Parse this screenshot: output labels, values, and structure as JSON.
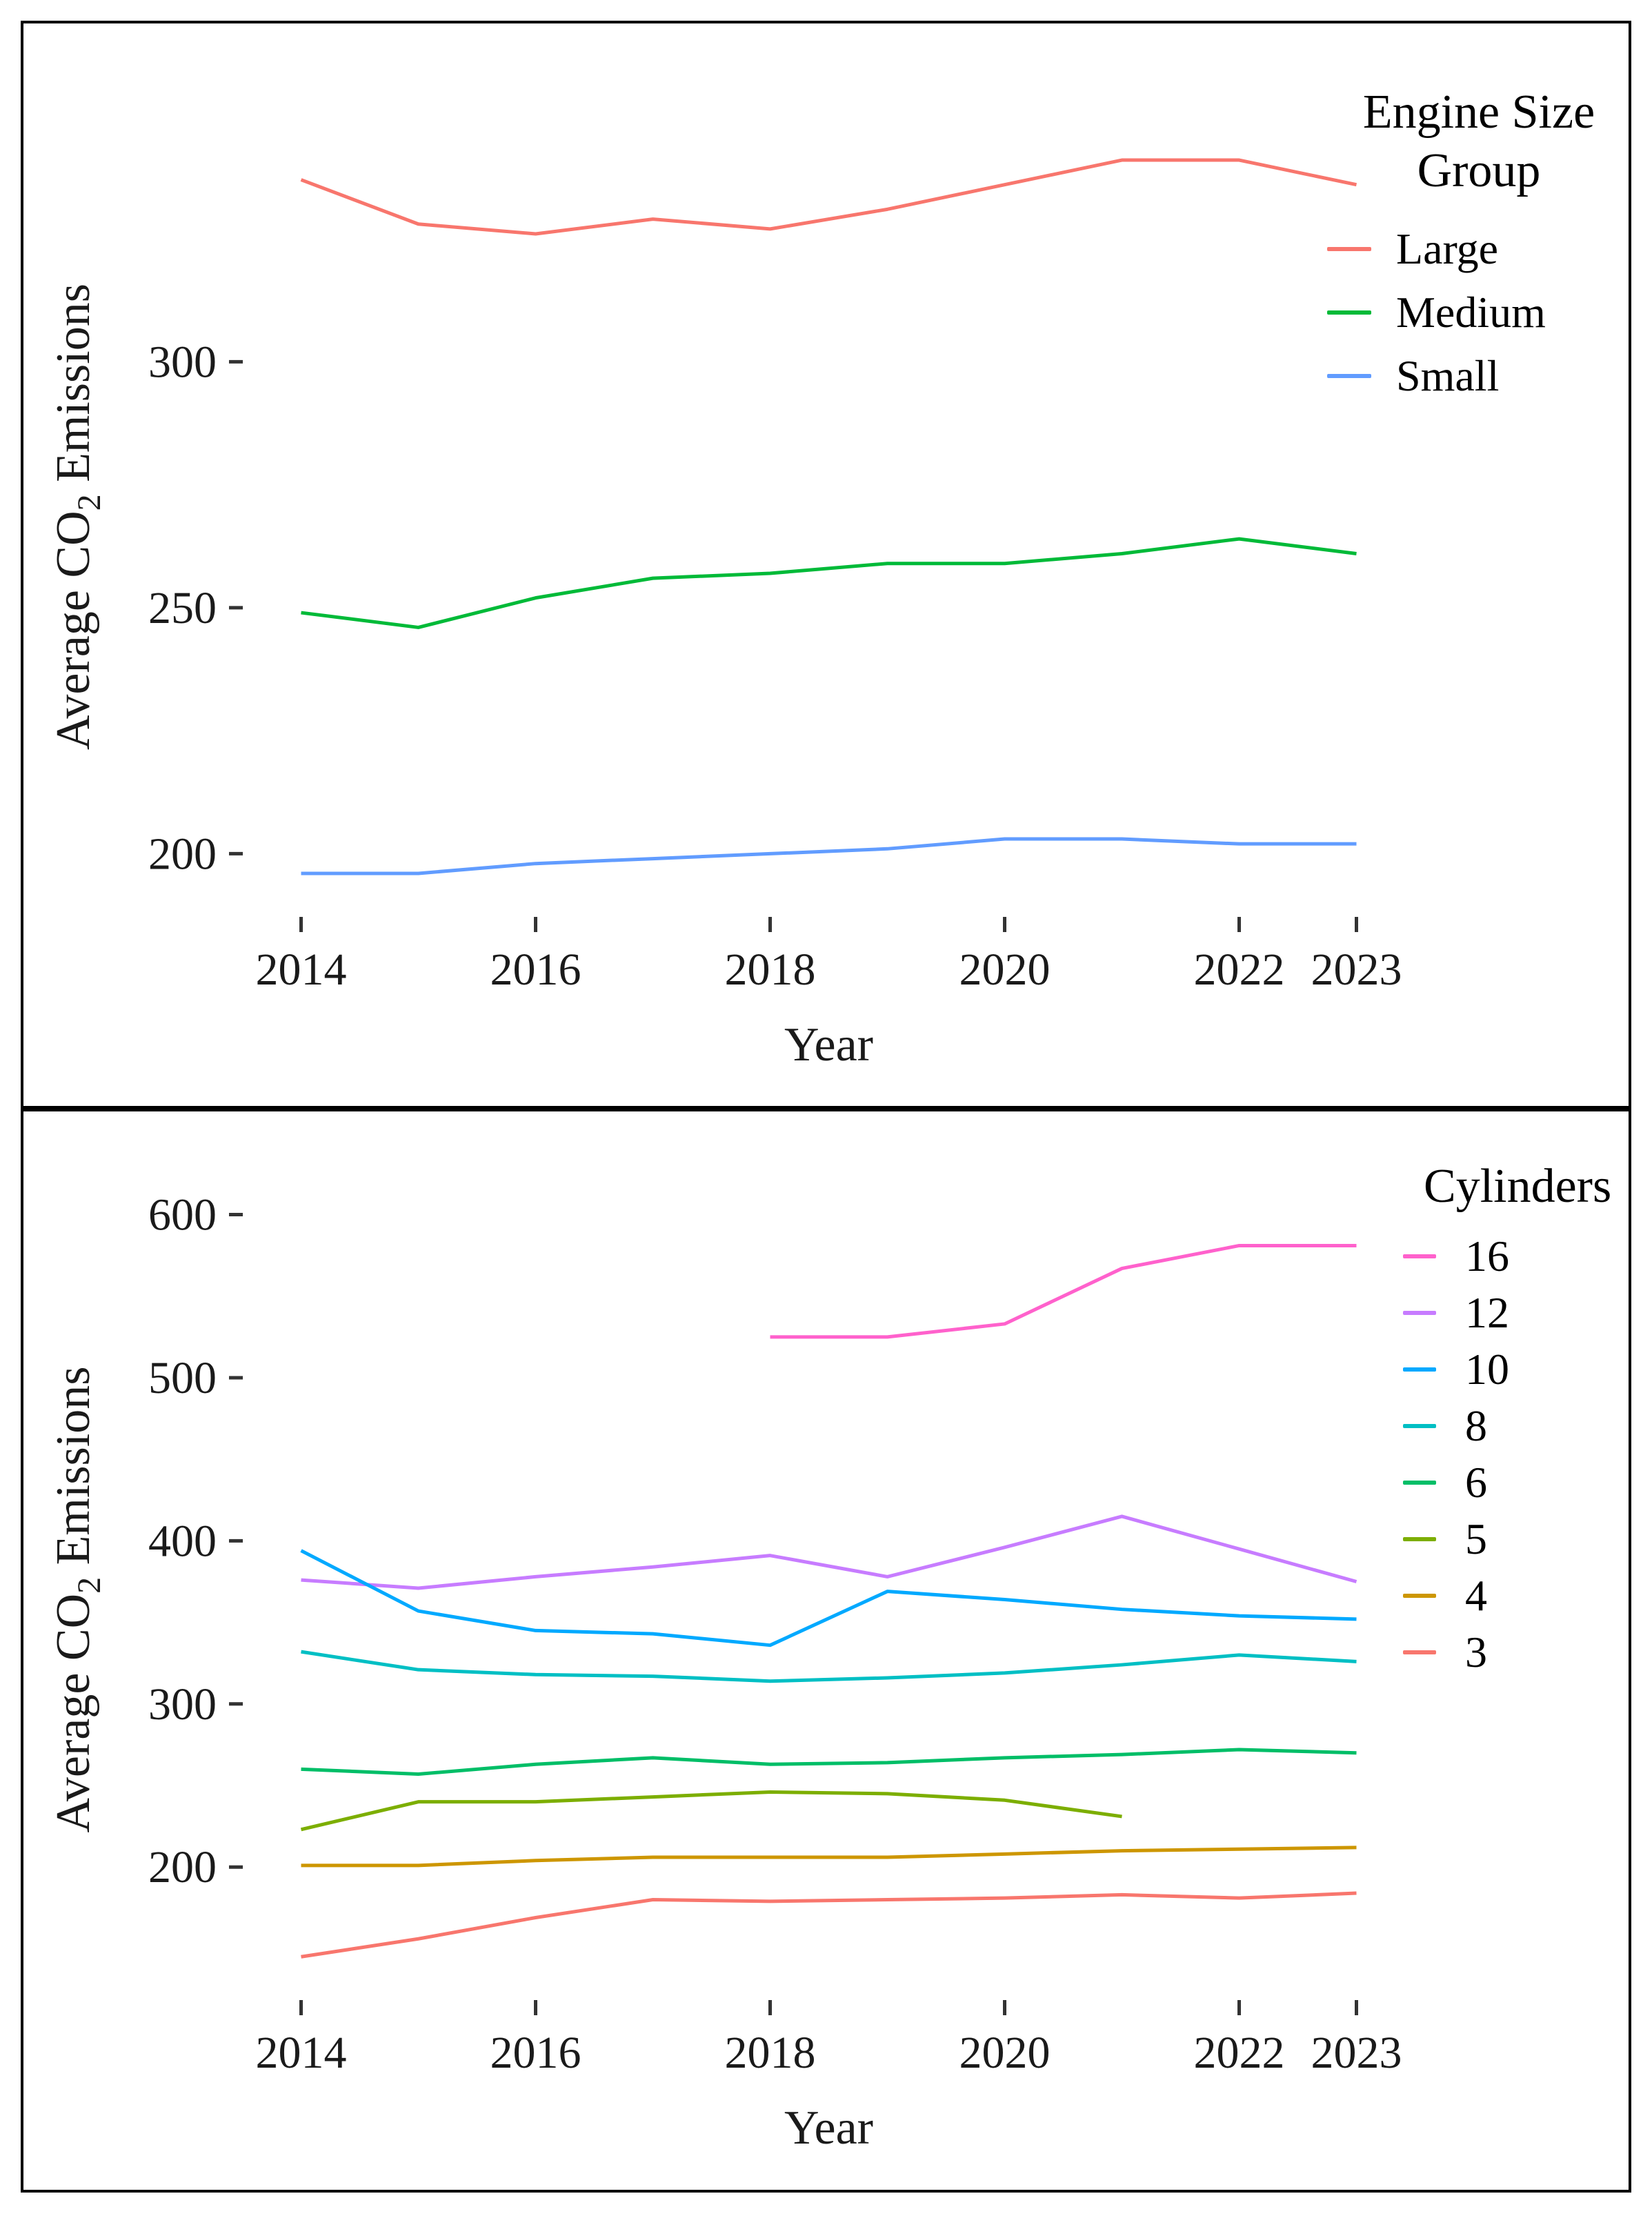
{
  "chart_data": [
    {
      "type": "line",
      "name": "engine-size-group-chart",
      "xlabel": "Year",
      "ylabel": {
        "prefix": "Average CO",
        "sub": "2",
        "suffix": " Emissions"
      },
      "legend_title_lines": [
        "Engine Size",
        "Group"
      ],
      "x": [
        2014,
        2015,
        2016,
        2017,
        2018,
        2019,
        2020,
        2021,
        2022,
        2023
      ],
      "x_ticks": [
        2014,
        2016,
        2018,
        2020,
        2022,
        2023
      ],
      "y_ticks": [
        200,
        250,
        300
      ],
      "x_domain": [
        2013.55,
        2023.45
      ],
      "y_domain": [
        188,
        349
      ],
      "grid": "off",
      "legend_position": "right",
      "series": [
        {
          "name": "Large",
          "color": "#F8766D",
          "values": [
            337,
            328,
            326,
            329,
            327,
            331,
            336,
            341,
            341,
            336
          ]
        },
        {
          "name": "Medium",
          "color": "#00BA38",
          "values": [
            249,
            246,
            252,
            256,
            257,
            259,
            259,
            261,
            264,
            261
          ]
        },
        {
          "name": "Small",
          "color": "#619CFF",
          "values": [
            196,
            196,
            198,
            199,
            200,
            201,
            203,
            203,
            202,
            202
          ]
        }
      ]
    },
    {
      "type": "line",
      "name": "cylinders-chart",
      "xlabel": "Year",
      "ylabel": {
        "prefix": "Average CO",
        "sub": "2",
        "suffix": " Emissions"
      },
      "legend_title_lines": [
        "Cylinders"
      ],
      "x": [
        2014,
        2015,
        2016,
        2017,
        2018,
        2019,
        2020,
        2021,
        2022,
        2023
      ],
      "x_ticks": [
        2014,
        2016,
        2018,
        2020,
        2022,
        2023
      ],
      "y_ticks": [
        200,
        300,
        400,
        500,
        600
      ],
      "x_domain": [
        2013.55,
        2023.45
      ],
      "y_domain": [
        121,
        607
      ],
      "grid": "off",
      "legend_position": "right",
      "series": [
        {
          "name": "16",
          "color": "#FF61CC",
          "values": [
            null,
            null,
            null,
            null,
            525,
            525,
            533,
            567,
            581,
            581
          ]
        },
        {
          "name": "12",
          "color": "#C77CFF",
          "values": [
            376,
            371,
            378,
            384,
            391,
            378,
            396,
            415,
            395,
            375
          ]
        },
        {
          "name": "10",
          "color": "#00A9FF",
          "values": [
            394,
            357,
            345,
            343,
            336,
            369,
            364,
            358,
            354,
            352
          ]
        },
        {
          "name": "8",
          "color": "#00BFC4",
          "values": [
            332,
            321,
            318,
            317,
            314,
            316,
            319,
            324,
            330,
            326
          ]
        },
        {
          "name": "6",
          "color": "#00BE67",
          "values": [
            260,
            257,
            263,
            267,
            263,
            264,
            267,
            269,
            272,
            270
          ]
        },
        {
          "name": "5",
          "color": "#7CAE00",
          "values": [
            223,
            240,
            240,
            243,
            246,
            245,
            241,
            231,
            null,
            null
          ]
        },
        {
          "name": "4",
          "color": "#CD9600",
          "values": [
            201,
            201,
            204,
            206,
            206,
            206,
            208,
            210,
            211,
            212
          ]
        },
        {
          "name": "3",
          "color": "#F8766D",
          "values": [
            145,
            156,
            169,
            180,
            179,
            180,
            181,
            183,
            181,
            184
          ]
        }
      ]
    }
  ],
  "style": {
    "tick_color": "#333333",
    "text_color": "#1a1a1a",
    "panel_border_color": "#000000"
  }
}
